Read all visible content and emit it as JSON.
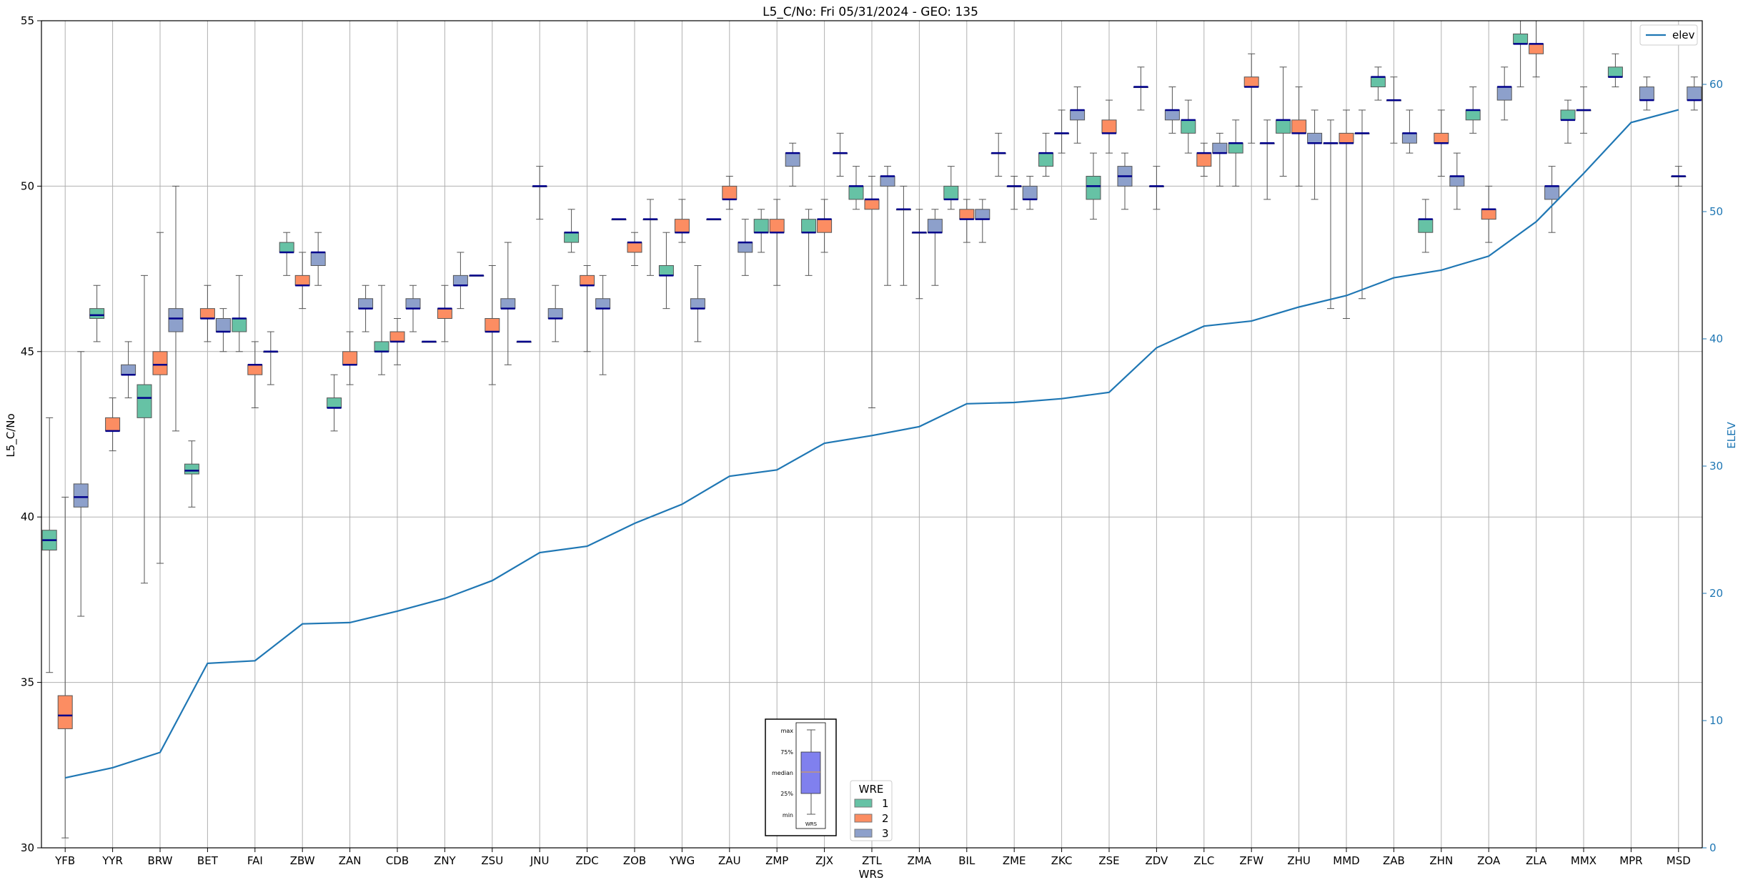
{
  "chart_data": {
    "type": "box",
    "title": "L5_C/No: Fri 05/31/2024 - GEO: 135",
    "xlabel": "WRS",
    "ylabel": "L5_C/No",
    "y2label": "ELEV",
    "ylim": [
      30,
      55
    ],
    "y2lim": [
      0,
      65
    ],
    "yticks": [
      30,
      35,
      40,
      45,
      50,
      55
    ],
    "y2ticks": [
      0,
      10,
      20,
      30,
      40,
      50,
      60
    ],
    "grid": true,
    "categories": [
      "YFB",
      "YYR",
      "BRW",
      "BET",
      "FAI",
      "ZBW",
      "ZAN",
      "CDB",
      "ZNY",
      "ZSU",
      "JNU",
      "ZDC",
      "ZOB",
      "YWG",
      "ZAU",
      "ZMP",
      "ZJX",
      "ZTL",
      "ZMA",
      "BIL",
      "ZME",
      "ZKC",
      "ZSE",
      "ZDV",
      "ZLC",
      "ZFW",
      "ZHU",
      "MMD",
      "ZAB",
      "ZHN",
      "ZOA",
      "ZLA",
      "MMX",
      "MPR",
      "MSD"
    ],
    "colors": {
      "wre1": "#66c2a5",
      "wre2": "#fc8d62",
      "wre3": "#8da0cb",
      "median": "#00008b",
      "elev": "#1f77b4",
      "whisker": "#555555"
    },
    "box_series": [
      {
        "name": "1",
        "boxes": [
          {
            "cat": "YFB",
            "min": 35.3,
            "q1": 39.0,
            "med": 39.3,
            "q3": 39.6,
            "max": 43.0
          },
          {
            "cat": "YYR",
            "min": 45.3,
            "q1": 46.0,
            "med": 46.1,
            "q3": 46.3,
            "max": 47.0
          },
          {
            "cat": "BRW",
            "min": 38.0,
            "q1": 43.0,
            "med": 43.6,
            "q3": 44.0,
            "max": 47.3
          },
          {
            "cat": "BET",
            "min": 40.3,
            "q1": 41.3,
            "med": 41.4,
            "q3": 41.6,
            "max": 42.3
          },
          {
            "cat": "FAI",
            "min": 45.0,
            "q1": 45.6,
            "med": 46.0,
            "q3": 46.0,
            "max": 47.3
          },
          {
            "cat": "ZBW",
            "min": 47.3,
            "q1": 48.0,
            "med": 48.0,
            "q3": 48.3,
            "max": 48.6
          },
          {
            "cat": "ZAN",
            "min": 42.6,
            "q1": 43.3,
            "med": 43.3,
            "q3": 43.6,
            "max": 44.3
          },
          {
            "cat": "CDB",
            "min": 44.3,
            "q1": 45.0,
            "med": 45.0,
            "q3": 45.3,
            "max": 47.0
          },
          {
            "cat": "ZNY",
            "min": 45.3,
            "q1": 45.3,
            "med": 45.3,
            "q3": 45.3,
            "max": 45.3
          },
          {
            "cat": "ZSU",
            "min": 47.3,
            "q1": 47.3,
            "med": 47.3,
            "q3": 47.3,
            "max": 47.3
          },
          {
            "cat": "JNU",
            "min": 45.3,
            "q1": 45.3,
            "med": 45.3,
            "q3": 45.3,
            "max": 45.3
          },
          {
            "cat": "ZDC",
            "min": 48.0,
            "q1": 48.3,
            "med": 48.6,
            "q3": 48.6,
            "max": 49.3
          },
          {
            "cat": "ZOB",
            "min": 49.0,
            "q1": 49.0,
            "med": 49.0,
            "q3": 49.0,
            "max": 49.0
          },
          {
            "cat": "YWG",
            "min": 46.3,
            "q1": 47.3,
            "med": 47.3,
            "q3": 47.6,
            "max": 48.6
          },
          {
            "cat": "ZAU",
            "min": 49.0,
            "q1": 49.0,
            "med": 49.0,
            "q3": 49.0,
            "max": 49.0
          },
          {
            "cat": "ZMP",
            "min": 48.0,
            "q1": 48.6,
            "med": 48.6,
            "q3": 49.0,
            "max": 49.3
          },
          {
            "cat": "ZJX",
            "min": 47.3,
            "q1": 48.6,
            "med": 48.6,
            "q3": 49.0,
            "max": 49.3
          },
          {
            "cat": "ZTL",
            "min": 49.3,
            "q1": 49.6,
            "med": 50.0,
            "q3": 50.0,
            "max": 50.6
          },
          {
            "cat": "ZMA",
            "min": 47.0,
            "q1": 49.3,
            "med": 49.3,
            "q3": 49.3,
            "max": 50.0
          },
          {
            "cat": "BIL",
            "min": 49.3,
            "q1": 49.6,
            "med": 49.6,
            "q3": 50.0,
            "max": 50.6
          },
          {
            "cat": "ZME",
            "min": 50.3,
            "q1": 51.0,
            "med": 51.0,
            "q3": 51.0,
            "max": 51.6
          },
          {
            "cat": "ZKC",
            "min": 50.3,
            "q1": 50.6,
            "med": 51.0,
            "q3": 51.0,
            "max": 51.6
          },
          {
            "cat": "ZSE",
            "min": 49.0,
            "q1": 49.6,
            "med": 50.0,
            "q3": 50.3,
            "max": 51.0
          },
          {
            "cat": "ZDV",
            "min": 52.3,
            "q1": 53.0,
            "med": 53.0,
            "q3": 53.0,
            "max": 53.6
          },
          {
            "cat": "ZLC",
            "min": 51.0,
            "q1": 51.6,
            "med": 52.0,
            "q3": 52.0,
            "max": 52.6
          },
          {
            "cat": "ZFW",
            "min": 50.0,
            "q1": 51.0,
            "med": 51.3,
            "q3": 51.3,
            "max": 52.0
          },
          {
            "cat": "ZHU",
            "min": 50.3,
            "q1": 51.6,
            "med": 52.0,
            "q3": 52.0,
            "max": 53.6
          },
          {
            "cat": "MMD",
            "min": 46.3,
            "q1": 51.3,
            "med": 51.3,
            "q3": 51.3,
            "max": 52.0
          },
          {
            "cat": "ZAB",
            "min": 52.6,
            "q1": 53.0,
            "med": 53.3,
            "q3": 53.3,
            "max": 53.6
          },
          {
            "cat": "ZHN",
            "min": 48.0,
            "q1": 48.6,
            "med": 49.0,
            "q3": 49.0,
            "max": 49.6
          },
          {
            "cat": "ZOA",
            "min": 51.6,
            "q1": 52.0,
            "med": 52.3,
            "q3": 52.3,
            "max": 53.0
          },
          {
            "cat": "ZLA",
            "min": 53.0,
            "q1": 54.3,
            "med": 54.3,
            "q3": 54.6,
            "max": 55.0
          },
          {
            "cat": "MMX",
            "min": 51.3,
            "q1": 52.0,
            "med": 52.0,
            "q3": 52.3,
            "max": 52.6
          },
          {
            "cat": "MPR",
            "min": 53.0,
            "q1": 53.3,
            "med": 53.3,
            "q3": 53.6,
            "max": 54.0
          }
        ]
      },
      {
        "name": "2",
        "boxes": [
          {
            "cat": "YFB",
            "min": 30.3,
            "q1": 33.6,
            "med": 34.0,
            "q3": 34.6,
            "max": 40.6
          },
          {
            "cat": "YYR",
            "min": 42.0,
            "q1": 42.6,
            "med": 42.6,
            "q3": 43.0,
            "max": 43.6
          },
          {
            "cat": "BRW",
            "min": 38.6,
            "q1": 44.3,
            "med": 44.6,
            "q3": 45.0,
            "max": 48.6
          },
          {
            "cat": "BET",
            "min": 45.3,
            "q1": 46.0,
            "med": 46.0,
            "q3": 46.3,
            "max": 47.0
          },
          {
            "cat": "FAI",
            "min": 43.3,
            "q1": 44.3,
            "med": 44.6,
            "q3": 44.6,
            "max": 45.3
          },
          {
            "cat": "ZBW",
            "min": 46.3,
            "q1": 47.0,
            "med": 47.0,
            "q3": 47.3,
            "max": 48.0
          },
          {
            "cat": "ZAN",
            "min": 44.0,
            "q1": 44.6,
            "med": 44.6,
            "q3": 45.0,
            "max": 45.6
          },
          {
            "cat": "CDB",
            "min": 44.6,
            "q1": 45.3,
            "med": 45.3,
            "q3": 45.6,
            "max": 46.0
          },
          {
            "cat": "ZNY",
            "min": 45.3,
            "q1": 46.0,
            "med": 46.3,
            "q3": 46.3,
            "max": 47.0
          },
          {
            "cat": "ZSU",
            "min": 44.0,
            "q1": 45.6,
            "med": 45.6,
            "q3": 46.0,
            "max": 47.6
          },
          {
            "cat": "JNU",
            "min": 49.0,
            "q1": 50.0,
            "med": 50.0,
            "q3": 50.0,
            "max": 50.6
          },
          {
            "cat": "ZDC",
            "min": 45.0,
            "q1": 47.0,
            "med": 47.0,
            "q3": 47.3,
            "max": 47.6
          },
          {
            "cat": "ZOB",
            "min": 47.6,
            "q1": 48.0,
            "med": 48.3,
            "q3": 48.3,
            "max": 48.6
          },
          {
            "cat": "YWG",
            "min": 48.3,
            "q1": 48.6,
            "med": 48.6,
            "q3": 49.0,
            "max": 49.6
          },
          {
            "cat": "ZAU",
            "min": 49.3,
            "q1": 49.6,
            "med": 49.6,
            "q3": 50.0,
            "max": 50.3
          },
          {
            "cat": "ZMP",
            "min": 47.0,
            "q1": 48.6,
            "med": 48.6,
            "q3": 49.0,
            "max": 49.6
          },
          {
            "cat": "ZJX",
            "min": 48.0,
            "q1": 48.6,
            "med": 49.0,
            "q3": 49.0,
            "max": 49.6
          },
          {
            "cat": "ZTL",
            "min": 43.3,
            "q1": 49.3,
            "med": 49.6,
            "q3": 49.6,
            "max": 50.3
          },
          {
            "cat": "ZMA",
            "min": 46.6,
            "q1": 48.6,
            "med": 48.6,
            "q3": 48.6,
            "max": 49.3
          },
          {
            "cat": "BIL",
            "min": 48.3,
            "q1": 49.0,
            "med": 49.0,
            "q3": 49.3,
            "max": 49.6
          },
          {
            "cat": "ZME",
            "min": 49.3,
            "q1": 50.0,
            "med": 50.0,
            "q3": 50.0,
            "max": 50.3
          },
          {
            "cat": "ZKC",
            "min": 51.0,
            "q1": 51.6,
            "med": 51.6,
            "q3": 51.6,
            "max": 52.3
          },
          {
            "cat": "ZSE",
            "min": 51.0,
            "q1": 51.6,
            "med": 51.6,
            "q3": 52.0,
            "max": 52.6
          },
          {
            "cat": "ZDV",
            "min": 49.3,
            "q1": 50.0,
            "med": 50.0,
            "q3": 50.0,
            "max": 50.6
          },
          {
            "cat": "ZLC",
            "min": 50.3,
            "q1": 50.6,
            "med": 51.0,
            "q3": 51.0,
            "max": 51.3
          },
          {
            "cat": "ZFW",
            "min": 51.3,
            "q1": 53.0,
            "med": 53.0,
            "q3": 53.3,
            "max": 54.0
          },
          {
            "cat": "ZHU",
            "min": 50.0,
            "q1": 51.6,
            "med": 51.6,
            "q3": 52.0,
            "max": 53.0
          },
          {
            "cat": "MMD",
            "min": 46.0,
            "q1": 51.3,
            "med": 51.3,
            "q3": 51.6,
            "max": 52.3
          },
          {
            "cat": "ZAB",
            "min": 51.3,
            "q1": 52.6,
            "med": 52.6,
            "q3": 52.6,
            "max": 53.3
          },
          {
            "cat": "ZHN",
            "min": 50.3,
            "q1": 51.3,
            "med": 51.3,
            "q3": 51.6,
            "max": 52.3
          },
          {
            "cat": "ZOA",
            "min": 48.3,
            "q1": 49.0,
            "med": 49.3,
            "q3": 49.3,
            "max": 50.0
          },
          {
            "cat": "ZLA",
            "min": 53.3,
            "q1": 54.0,
            "med": 54.3,
            "q3": 54.3,
            "max": 55.0
          },
          {
            "cat": "MMX",
            "min": 51.6,
            "q1": 52.3,
            "med": 52.3,
            "q3": 52.3,
            "max": 53.0
          },
          {
            "cat": "MSD",
            "min": 50.0,
            "q1": 50.3,
            "med": 50.3,
            "q3": 50.3,
            "max": 50.6
          }
        ]
      },
      {
        "name": "3",
        "boxes": [
          {
            "cat": "YFB",
            "min": 37.0,
            "q1": 40.3,
            "med": 40.6,
            "q3": 41.0,
            "max": 45.0
          },
          {
            "cat": "YYR",
            "min": 43.6,
            "q1": 44.3,
            "med": 44.3,
            "q3": 44.6,
            "max": 45.3
          },
          {
            "cat": "BRW",
            "min": 42.6,
            "q1": 45.6,
            "med": 46.0,
            "q3": 46.3,
            "max": 50.0
          },
          {
            "cat": "BET",
            "min": 45.0,
            "q1": 45.6,
            "med": 45.6,
            "q3": 46.0,
            "max": 46.3
          },
          {
            "cat": "FAI",
            "min": 44.0,
            "q1": 45.0,
            "med": 45.0,
            "q3": 45.0,
            "max": 45.6
          },
          {
            "cat": "ZBW",
            "min": 47.0,
            "q1": 47.6,
            "med": 48.0,
            "q3": 48.0,
            "max": 48.6
          },
          {
            "cat": "ZAN",
            "min": 45.6,
            "q1": 46.3,
            "med": 46.3,
            "q3": 46.6,
            "max": 47.0
          },
          {
            "cat": "CDB",
            "min": 45.6,
            "q1": 46.3,
            "med": 46.3,
            "q3": 46.6,
            "max": 47.0
          },
          {
            "cat": "ZNY",
            "min": 46.3,
            "q1": 47.0,
            "med": 47.0,
            "q3": 47.3,
            "max": 48.0
          },
          {
            "cat": "ZSU",
            "min": 44.6,
            "q1": 46.3,
            "med": 46.3,
            "q3": 46.6,
            "max": 48.3
          },
          {
            "cat": "JNU",
            "min": 45.3,
            "q1": 46.0,
            "med": 46.0,
            "q3": 46.3,
            "max": 47.0
          },
          {
            "cat": "ZDC",
            "min": 44.3,
            "q1": 46.3,
            "med": 46.3,
            "q3": 46.6,
            "max": 47.3
          },
          {
            "cat": "ZOB",
            "min": 47.3,
            "q1": 49.0,
            "med": 49.0,
            "q3": 49.0,
            "max": 49.6
          },
          {
            "cat": "YWG",
            "min": 45.3,
            "q1": 46.3,
            "med": 46.3,
            "q3": 46.6,
            "max": 47.6
          },
          {
            "cat": "ZAU",
            "min": 47.3,
            "q1": 48.0,
            "med": 48.3,
            "q3": 48.3,
            "max": 49.0
          },
          {
            "cat": "ZMP",
            "min": 50.0,
            "q1": 50.6,
            "med": 51.0,
            "q3": 51.0,
            "max": 51.3
          },
          {
            "cat": "ZJX",
            "min": 50.3,
            "q1": 51.0,
            "med": 51.0,
            "q3": 51.0,
            "max": 51.6
          },
          {
            "cat": "ZTL",
            "min": 47.0,
            "q1": 50.0,
            "med": 50.3,
            "q3": 50.3,
            "max": 50.6
          },
          {
            "cat": "ZMA",
            "min": 47.0,
            "q1": 48.6,
            "med": 48.6,
            "q3": 49.0,
            "max": 49.3
          },
          {
            "cat": "BIL",
            "min": 48.3,
            "q1": 49.0,
            "med": 49.0,
            "q3": 49.3,
            "max": 49.6
          },
          {
            "cat": "ZME",
            "min": 49.3,
            "q1": 49.6,
            "med": 49.6,
            "q3": 50.0,
            "max": 50.3
          },
          {
            "cat": "ZKC",
            "min": 51.3,
            "q1": 52.0,
            "med": 52.3,
            "q3": 52.3,
            "max": 53.0
          },
          {
            "cat": "ZSE",
            "min": 49.3,
            "q1": 50.0,
            "med": 50.3,
            "q3": 50.6,
            "max": 51.0
          },
          {
            "cat": "ZDV",
            "min": 51.6,
            "q1": 52.0,
            "med": 52.3,
            "q3": 52.3,
            "max": 53.0
          },
          {
            "cat": "ZLC",
            "min": 50.0,
            "q1": 51.0,
            "med": 51.0,
            "q3": 51.3,
            "max": 51.6
          },
          {
            "cat": "ZFW",
            "min": 49.6,
            "q1": 51.3,
            "med": 51.3,
            "q3": 51.3,
            "max": 52.0
          },
          {
            "cat": "ZHU",
            "min": 49.6,
            "q1": 51.3,
            "med": 51.3,
            "q3": 51.6,
            "max": 52.3
          },
          {
            "cat": "MMD",
            "min": 46.6,
            "q1": 51.6,
            "med": 51.6,
            "q3": 51.6,
            "max": 52.3
          },
          {
            "cat": "ZAB",
            "min": 51.0,
            "q1": 51.3,
            "med": 51.6,
            "q3": 51.6,
            "max": 52.3
          },
          {
            "cat": "ZHN",
            "min": 49.3,
            "q1": 50.0,
            "med": 50.3,
            "q3": 50.3,
            "max": 51.0
          },
          {
            "cat": "ZOA",
            "min": 52.0,
            "q1": 52.6,
            "med": 53.0,
            "q3": 53.0,
            "max": 53.6
          },
          {
            "cat": "ZLA",
            "min": 48.6,
            "q1": 49.6,
            "med": 50.0,
            "q3": 50.0,
            "max": 50.6
          },
          {
            "cat": "MPR",
            "min": 52.3,
            "q1": 52.6,
            "med": 52.6,
            "q3": 53.0,
            "max": 53.3
          },
          {
            "cat": "MSD",
            "min": 52.3,
            "q1": 52.6,
            "med": 52.6,
            "q3": 53.0,
            "max": 53.3
          }
        ]
      }
    ],
    "elev_series": {
      "name": "elev",
      "values": [
        5.5,
        6.3,
        7.5,
        14.5,
        14.7,
        17.6,
        17.7,
        18.6,
        19.6,
        21.0,
        23.2,
        23.7,
        25.5,
        27.0,
        29.2,
        29.7,
        31.8,
        32.4,
        33.1,
        34.9,
        35.0,
        35.3,
        35.8,
        39.3,
        41.0,
        41.4,
        42.5,
        43.4,
        44.8,
        45.4,
        46.5,
        49.2,
        53.0,
        57.0,
        58.0
      ]
    },
    "legend": {
      "placement": "top-right",
      "entries": [
        "elev"
      ]
    },
    "wre_legend": {
      "title": "WRE",
      "placement": "bottom-center",
      "entries": [
        "1",
        "2",
        "3"
      ]
    },
    "key_inset": {
      "labels": [
        "max",
        "75%",
        "median",
        "25%",
        "min"
      ],
      "xlabel": "WRS"
    }
  }
}
